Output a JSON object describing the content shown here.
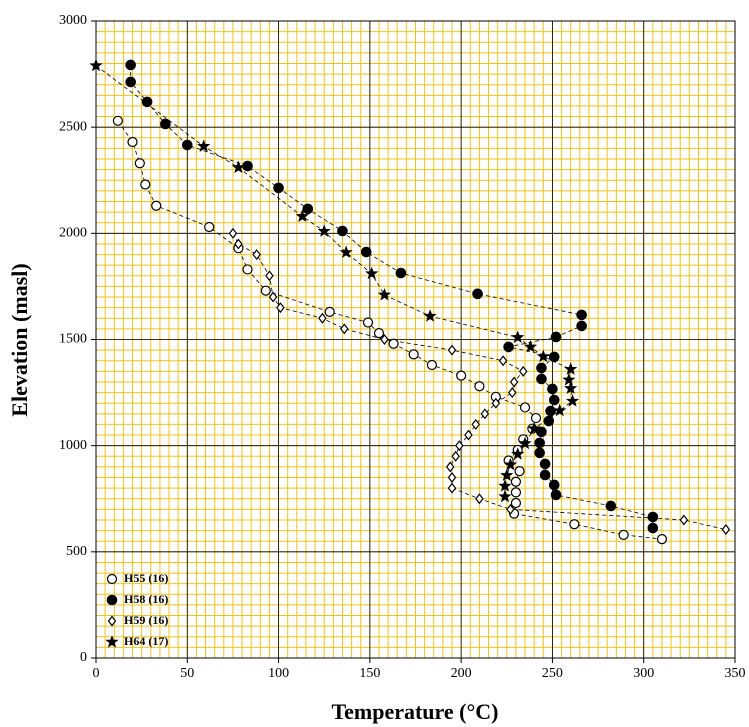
{
  "chart_data": {
    "type": "scatter",
    "x_label": "Temperature (°C)",
    "y_label": "Elevation (masl)",
    "xlim": [
      0,
      350
    ],
    "ylim": [
      0,
      3000
    ],
    "xticks": [
      0,
      50,
      100,
      150,
      200,
      250,
      300,
      350
    ],
    "yticks": [
      0,
      500,
      1000,
      1500,
      2000,
      2500,
      3000
    ],
    "grid": true,
    "grid_color": "#000000",
    "minor_grid_color": "#f2c21b",
    "xminor_step": 5,
    "yminor_step": 50,
    "legend": "lower left",
    "line_style": "dashed",
    "series": [
      {
        "name": "H55 (16)",
        "color": "#000000",
        "marker": "circle-open",
        "x": [
          12,
          20,
          24,
          27,
          33,
          62,
          78,
          83,
          93,
          128,
          149,
          155,
          163,
          174,
          184,
          200,
          210,
          219,
          235,
          241,
          239,
          234,
          231,
          226,
          232,
          230,
          230,
          230,
          229,
          262,
          289,
          310
        ],
        "values": [
          2530,
          2430,
          2330,
          2230,
          2130,
          2030,
          1930,
          1830,
          1730,
          1630,
          1580,
          1530,
          1480,
          1430,
          1380,
          1330,
          1280,
          1230,
          1180,
          1130,
          1080,
          1030,
          980,
          930,
          880,
          830,
          780,
          730,
          680,
          630,
          580,
          560
        ]
      },
      {
        "name": "H58 (16)",
        "color": "#000000",
        "marker": "circle-filled",
        "x": [
          19,
          19,
          28,
          38,
          50,
          83,
          100,
          116,
          135,
          148,
          167,
          209,
          266,
          266,
          252,
          226,
          251,
          244,
          244,
          250,
          251,
          249,
          248,
          244,
          243,
          243,
          246,
          246,
          251,
          252,
          282,
          305,
          305
        ],
        "values": [
          2793,
          2713,
          2619,
          2515,
          2416,
          2317,
          2214,
          2115,
          2011,
          1912,
          1813,
          1715,
          1616,
          1564,
          1512,
          1465,
          1418,
          1366,
          1314,
          1267,
          1215,
          1163,
          1116,
          1065,
          1013,
          966,
          914,
          862,
          815,
          768,
          716,
          664,
          612
        ]
      },
      {
        "name": "H59 (16)",
        "color": "#000000",
        "marker": "diamond-open",
        "x": [
          75,
          78,
          88,
          95,
          97,
          101,
          124,
          136,
          158,
          195,
          223,
          234,
          229,
          228,
          219,
          213,
          208,
          204,
          199,
          197,
          194,
          195,
          195,
          210,
          227,
          322,
          345
        ],
        "values": [
          2000,
          1950,
          1900,
          1800,
          1700,
          1650,
          1600,
          1550,
          1500,
          1450,
          1400,
          1350,
          1300,
          1250,
          1200,
          1150,
          1100,
          1050,
          1000,
          950,
          900,
          850,
          800,
          750,
          700,
          650,
          605
        ]
      },
      {
        "name": "H64 (17)",
        "color": "#000000",
        "marker": "star",
        "x": [
          0,
          59,
          78,
          113,
          125,
          137,
          151,
          158,
          183,
          231,
          238,
          245,
          260,
          259,
          260,
          261,
          254,
          240,
          235,
          231,
          227,
          225,
          224,
          224
        ],
        "values": [
          2790,
          2410,
          2310,
          2080,
          2010,
          1910,
          1810,
          1710,
          1610,
          1510,
          1465,
          1420,
          1360,
          1310,
          1270,
          1210,
          1165,
          1080,
          1010,
          960,
          910,
          860,
          810,
          760
        ]
      }
    ]
  }
}
